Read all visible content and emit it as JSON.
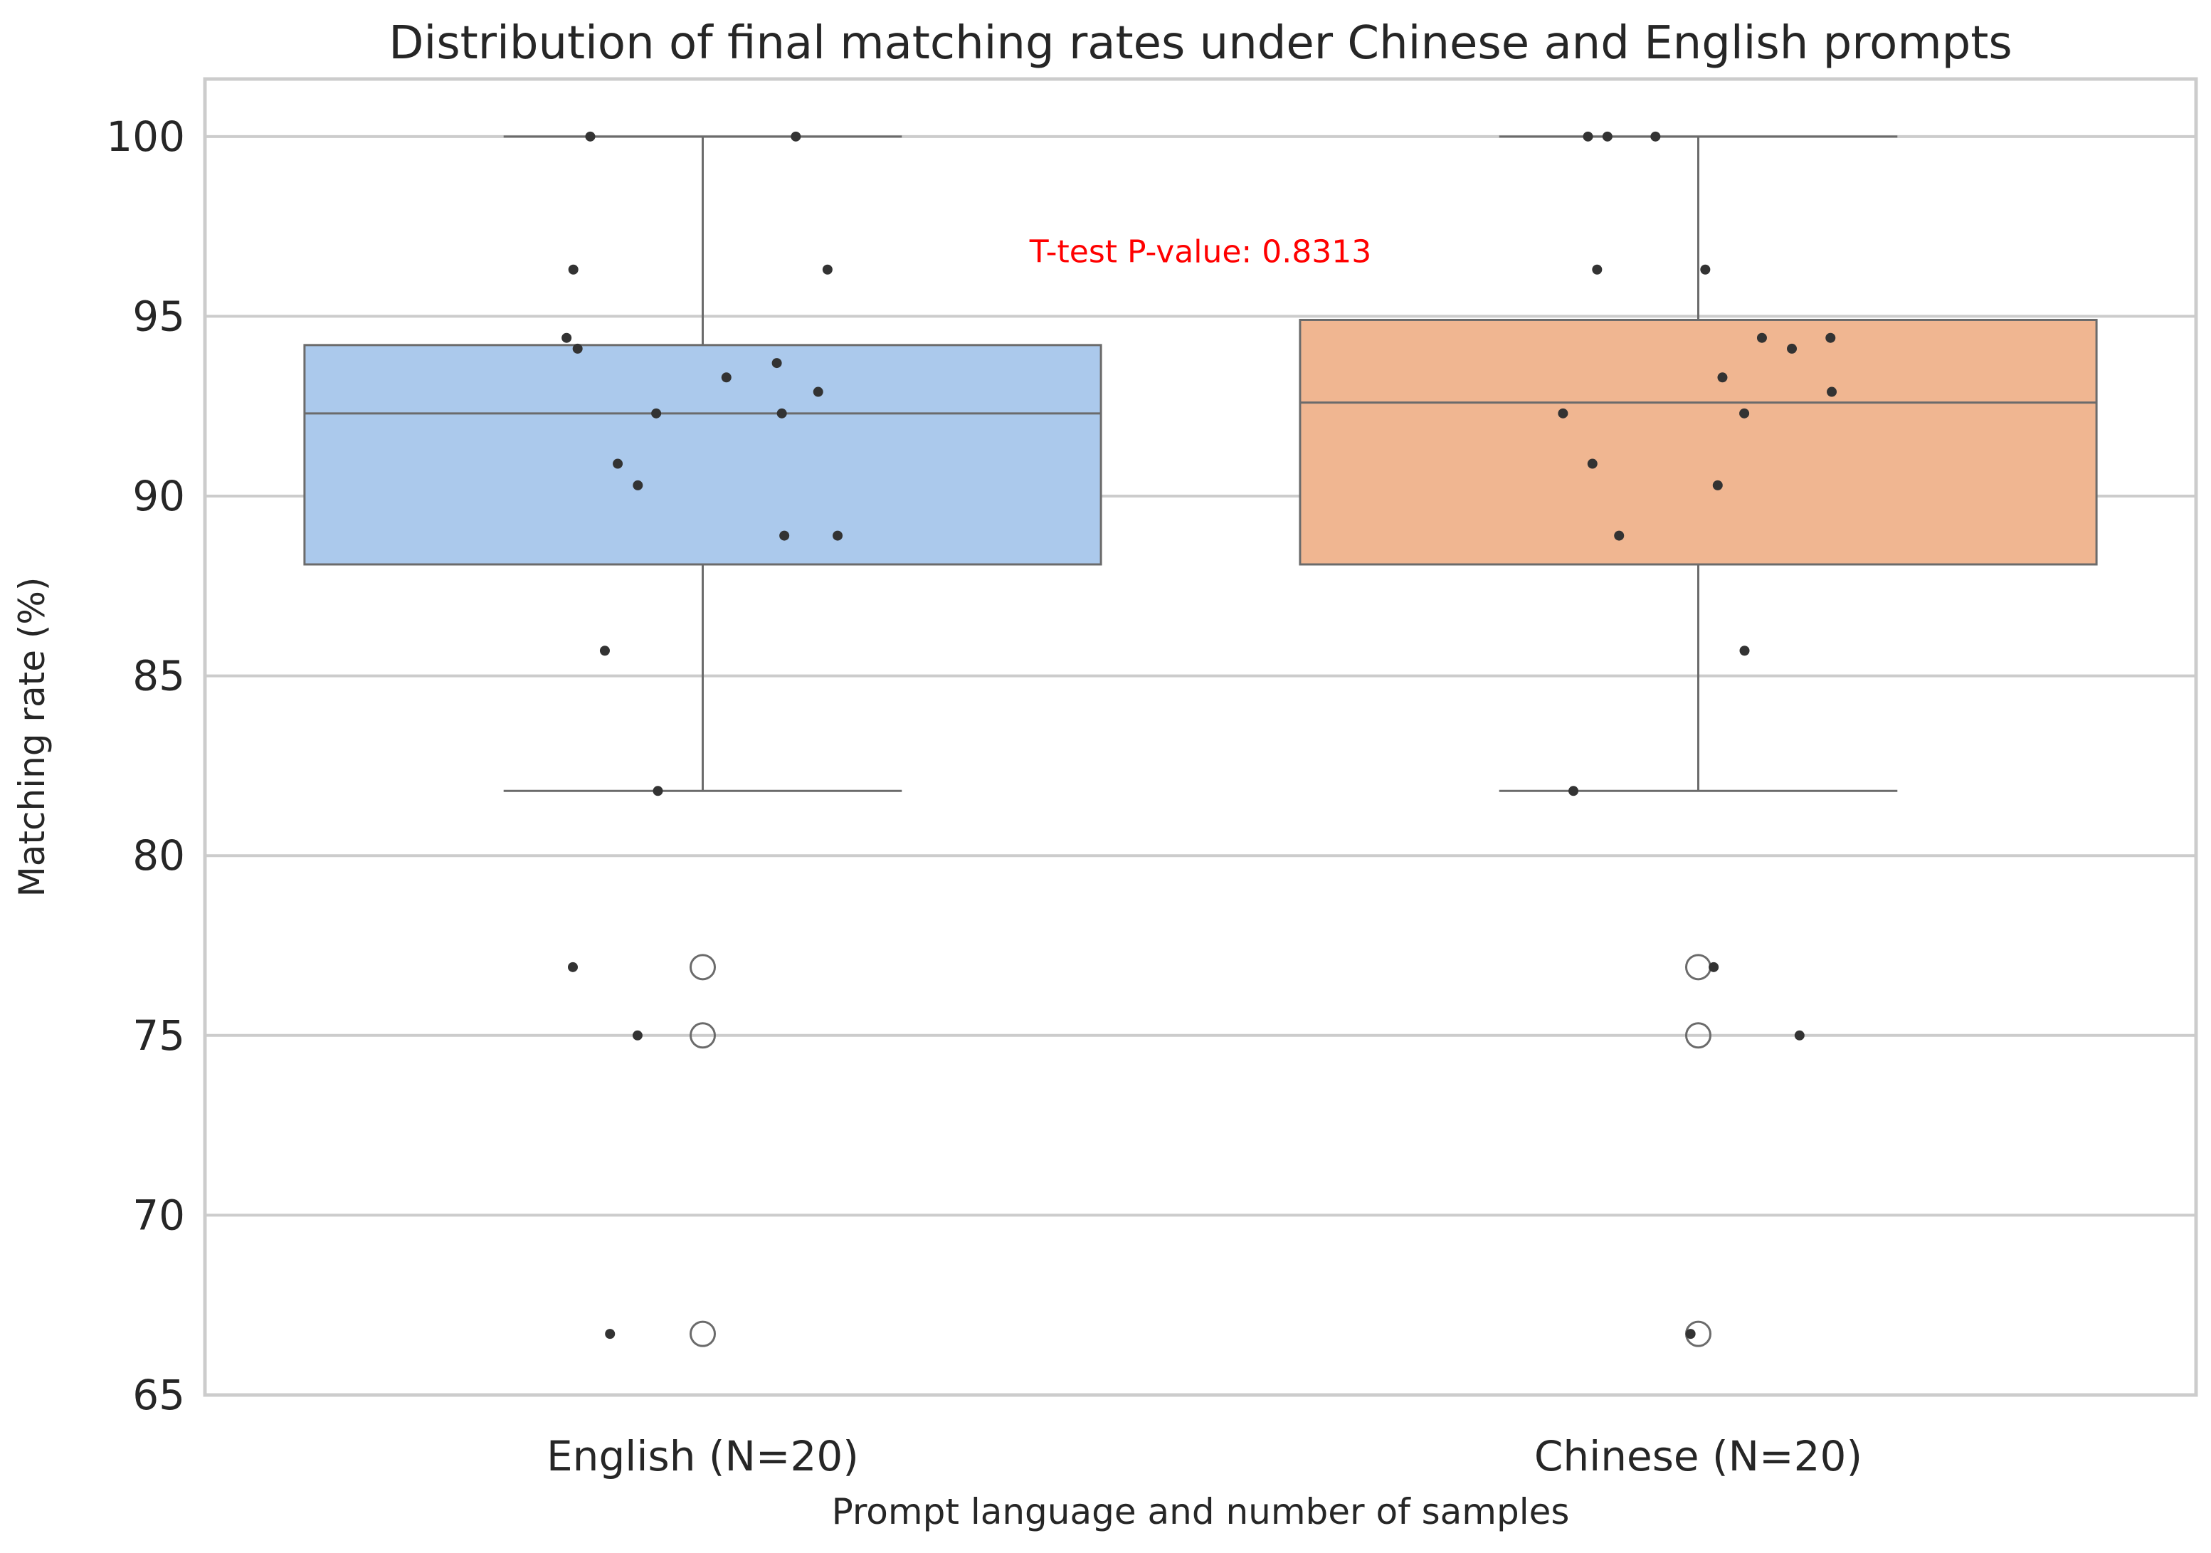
{
  "chart_data": {
    "type": "box",
    "title": "Distribution of final matching rates under Chinese and English prompts",
    "xlabel": "Prompt language and number of samples",
    "ylabel": "Matching rate (%)",
    "ylim": [
      65,
      101.6
    ],
    "yticks": [
      65,
      70,
      75,
      80,
      85,
      90,
      95,
      100
    ],
    "grid": "horizontal",
    "annotation": {
      "text": "T-test P-value: 0.8313",
      "color": "#ff0000",
      "y": 96.8
    },
    "colors": {
      "axes_edge": "#cccccc",
      "grid": "#cccccc",
      "box_line": "#6b6b6b",
      "points": "#333333"
    },
    "categories": [
      "English (N=20)",
      "Chinese (N=20)"
    ],
    "series": [
      {
        "category": "English (N=20)",
        "color": "#abc9ec",
        "box": {
          "whisker_low": 81.8,
          "q1": 88.1,
          "median": 92.3,
          "q3": 94.2,
          "whisker_high": 100
        },
        "outliers": [
          76.9,
          75.0,
          66.7
        ],
        "points": [
          100,
          100,
          96.3,
          96.3,
          94.4,
          94.1,
          93.7,
          93.3,
          92.9,
          92.3,
          92.3,
          90.9,
          90.3,
          88.9,
          88.9,
          85.7,
          81.8,
          76.9,
          75.0,
          66.7
        ]
      },
      {
        "category": "Chinese (N=20)",
        "color": "#f0b691",
        "box": {
          "whisker_low": 81.8,
          "q1": 88.1,
          "median": 92.6,
          "q3": 94.9,
          "whisker_high": 100
        },
        "outliers": [
          76.9,
          75.0,
          66.7
        ],
        "points": [
          100,
          100,
          100,
          96.3,
          96.3,
          94.4,
          94.4,
          94.1,
          93.3,
          92.9,
          92.3,
          92.3,
          90.9,
          90.3,
          88.9,
          85.7,
          81.8,
          76.9,
          75.0,
          66.7
        ]
      }
    ]
  }
}
